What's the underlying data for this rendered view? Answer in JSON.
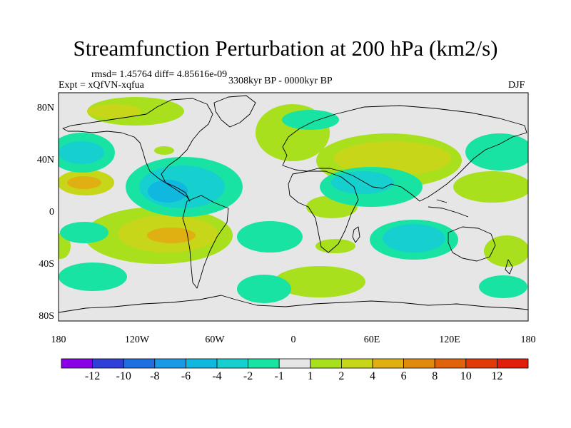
{
  "title": "Streamfunction Perturbation at 200 hPa (km2/s)",
  "stats": "rmsd= 1.45764 diff= 4.85616e-09",
  "experiment": "Expt = xQfVN-xqfua",
  "period": "3308kyr BP - 0000kyr BP",
  "season": "DJF",
  "map": {
    "lon_range": [
      -180,
      180
    ],
    "lat_range": [
      -90,
      90
    ],
    "lon_ticks": [
      "180",
      "120W",
      "60W",
      "0",
      "60E",
      "120E",
      "180"
    ],
    "lat_ticks": [
      "80N",
      "40N",
      "0",
      "40S",
      "80S"
    ]
  },
  "colorbar": {
    "labels": [
      "-12",
      "-10",
      "-8",
      "-6",
      "-4",
      "-2",
      "-1",
      "1",
      "2",
      "4",
      "6",
      "8",
      "10",
      "12"
    ],
    "colors": [
      "#8a00e6",
      "#2f3fd8",
      "#1f6fe0",
      "#1a9ae6",
      "#10b8e0",
      "#15d0cf",
      "#19e3a2",
      "#e6e6e6",
      "#a8e01e",
      "#c8d61a",
      "#e0b012",
      "#e08a0e",
      "#e0620a",
      "#e03a08",
      "#e01e0a"
    ]
  },
  "contour_levels": [
    "-2",
    "-1",
    "1",
    "2",
    "4",
    "6"
  ]
}
